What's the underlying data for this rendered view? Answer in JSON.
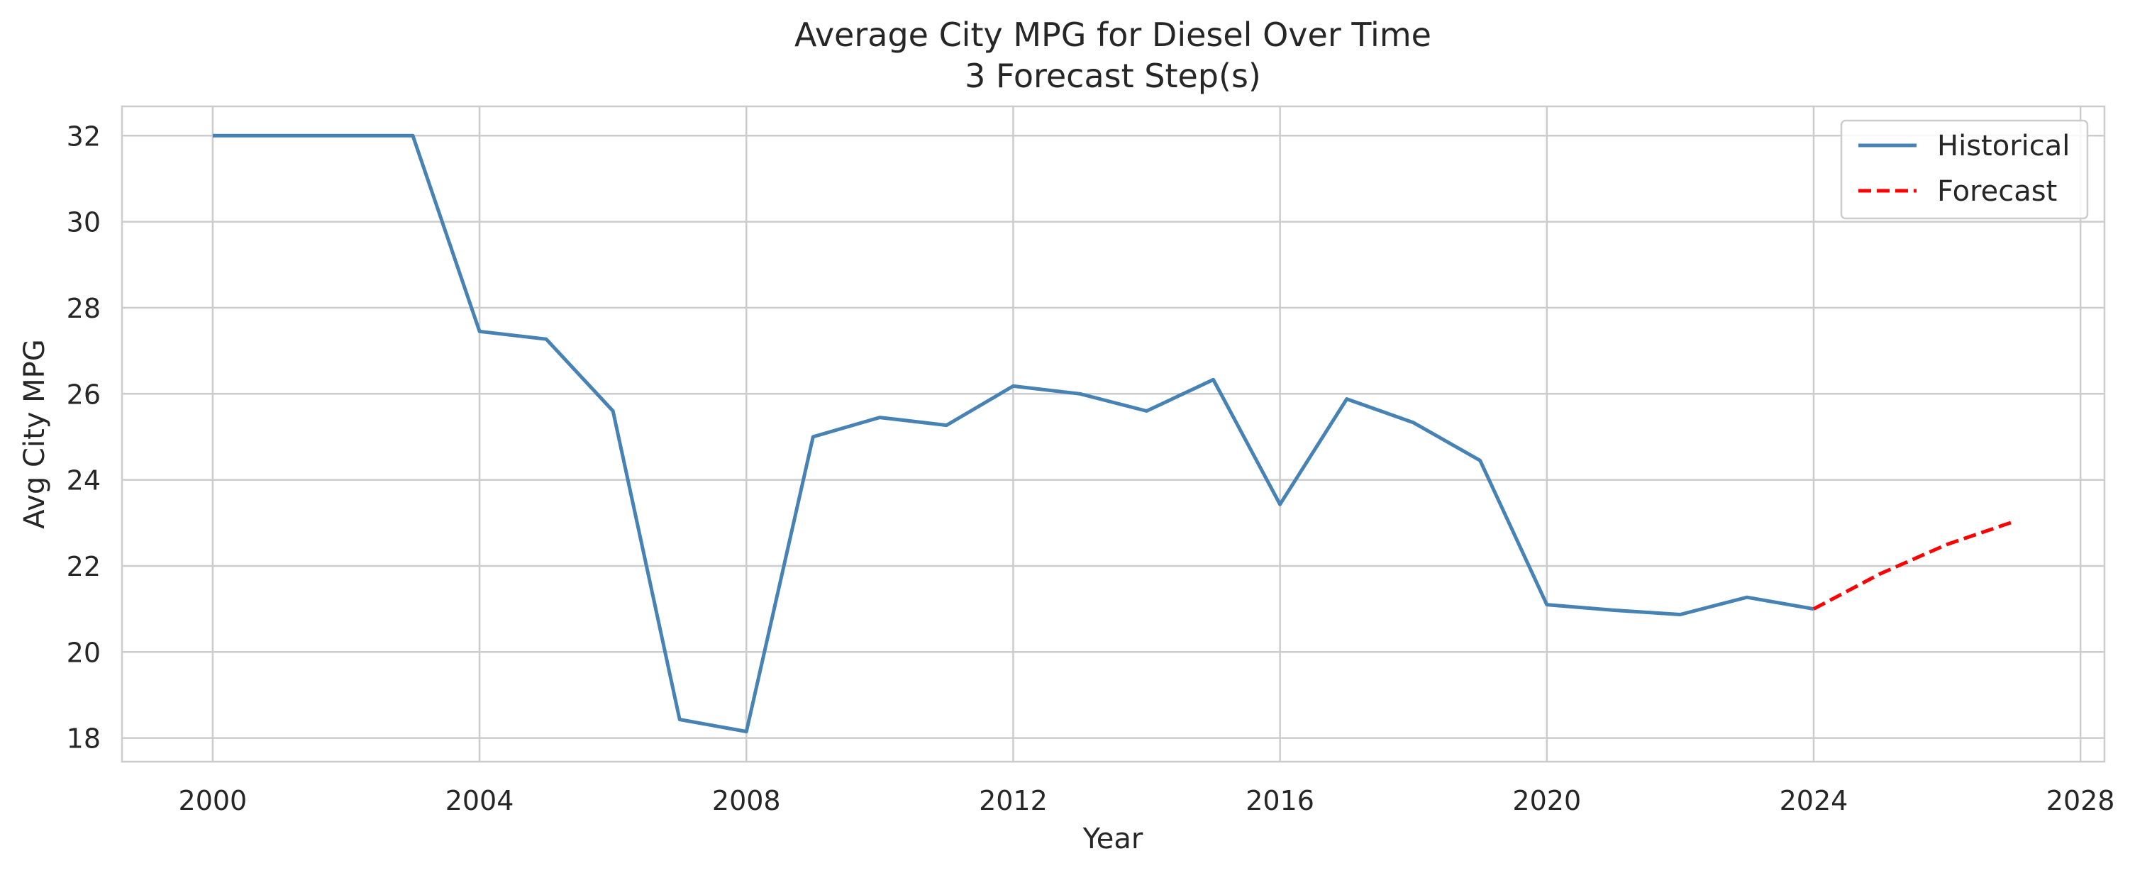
{
  "chart_data": {
    "type": "line",
    "title": "Average City MPG for Diesel Over Time",
    "subtitle": "3 Forecast Step(s)",
    "xlabel": "Year",
    "ylabel": "Avg City MPG",
    "xlim": [
      1998.64,
      2028.36
    ],
    "ylim": [
      17.45,
      32.68
    ],
    "xticks": [
      2000,
      2004,
      2008,
      2012,
      2016,
      2020,
      2024,
      2028
    ],
    "yticks": [
      18,
      20,
      22,
      24,
      26,
      28,
      30,
      32
    ],
    "grid": true,
    "legend_position": "top-right",
    "series": [
      {
        "name": "Historical",
        "color": "#4682b4",
        "style": "solid",
        "x": [
          2000,
          2001,
          2002,
          2003,
          2004,
          2005,
          2006,
          2007,
          2008,
          2009,
          2010,
          2011,
          2012,
          2013,
          2014,
          2015,
          2016,
          2017,
          2018,
          2019,
          2020,
          2021,
          2022,
          2023,
          2024
        ],
        "y": [
          32.0,
          32.0,
          32.0,
          32.0,
          27.45,
          27.27,
          25.6,
          18.43,
          18.15,
          25.0,
          25.45,
          25.27,
          26.18,
          26.0,
          25.6,
          26.33,
          23.43,
          25.88,
          25.33,
          24.45,
          21.1,
          20.97,
          20.87,
          21.27,
          21.0
        ]
      },
      {
        "name": "Forecast",
        "color": "#ff0000",
        "style": "dashed",
        "x": [
          2024,
          2025,
          2026,
          2027
        ],
        "y": [
          21.0,
          21.82,
          22.5,
          23.03
        ]
      }
    ]
  }
}
